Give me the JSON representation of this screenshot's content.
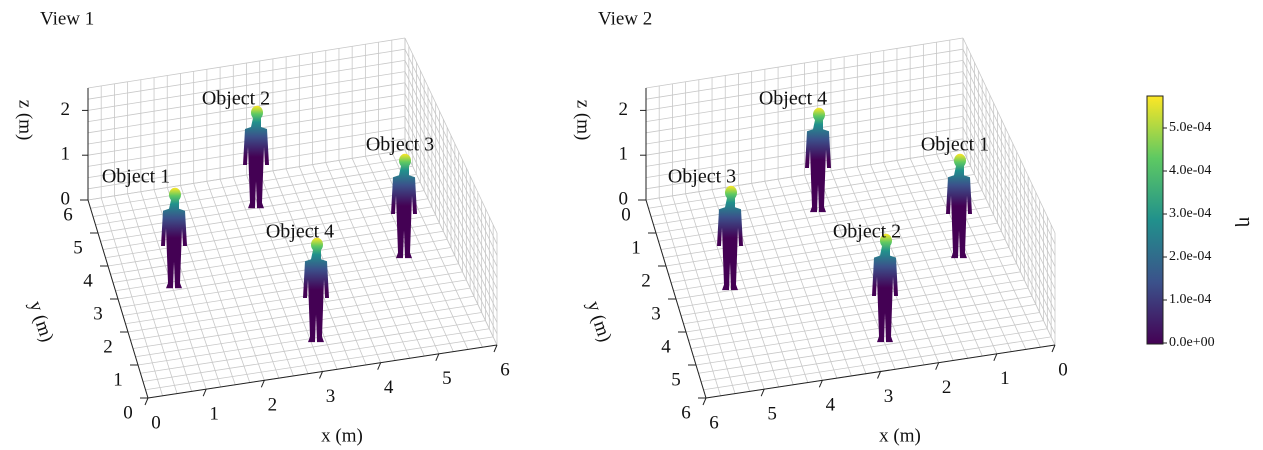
{
  "views": [
    {
      "title": "View 1",
      "x_label": "x (m)",
      "y_label": "y (m)",
      "z_label": "z (m)",
      "x_ticks": [
        0,
        1,
        2,
        3,
        4,
        5,
        6
      ],
      "y_ticks": [
        0,
        1,
        2,
        3,
        4,
        5,
        6
      ],
      "z_ticks": [
        0,
        1,
        2
      ],
      "objects": [
        "Object 1",
        "Object 2",
        "Object 3",
        "Object 4"
      ]
    },
    {
      "title": "View 2",
      "x_label": "x (m)",
      "y_label": "y (m)",
      "z_label": "z (m)",
      "x_ticks": [
        6,
        5,
        4,
        3,
        2,
        1,
        0
      ],
      "y_ticks": [
        6,
        5,
        4,
        3,
        2,
        1,
        0
      ],
      "z_ticks": [
        0,
        1,
        2
      ],
      "objects": [
        "Object 3",
        "Object 4",
        "Object 1",
        "Object 2"
      ]
    }
  ],
  "colorbar": {
    "label": "η",
    "ticks": [
      "0.0e+00",
      "1.0e-04",
      "2.0e-04",
      "3.0e-04",
      "4.0e-04",
      "5.0e-04"
    ]
  }
}
